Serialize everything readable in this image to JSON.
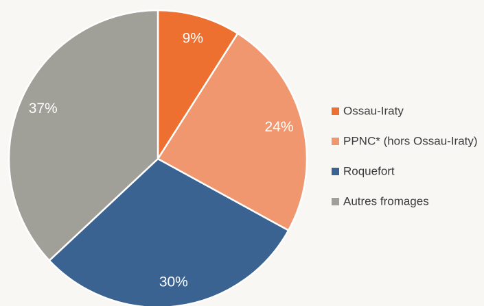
{
  "chart_data": {
    "type": "pie",
    "categories": [
      "Ossau-Iraty",
      "PPNC* (hors Ossau-Iraty)",
      "Roquefort",
      "Autres fromages"
    ],
    "values": [
      9,
      24,
      30,
      37
    ],
    "value_labels": [
      "9%",
      "24%",
      "30%",
      "37%"
    ],
    "colors": [
      "#ed7031",
      "#f0976f",
      "#3a6392",
      "#a09f98"
    ],
    "legend": "right"
  }
}
